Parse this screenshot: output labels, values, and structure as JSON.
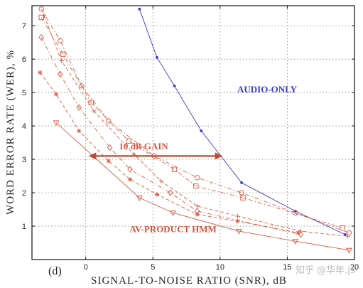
{
  "chart_data": {
    "type": "line",
    "panel_label": "(d)",
    "xlabel": "SIGNAL-TO-NOISE  RATIO  (SNR),  dB",
    "ylabel": "WORD  ERROR  RATE  (WER),  %",
    "xlim": [
      -4,
      20
    ],
    "ylim": [
      0,
      7.6
    ],
    "xticks": [
      0,
      5,
      10,
      15,
      20
    ],
    "yticks": [
      1,
      2,
      3,
      4,
      5,
      6,
      7
    ],
    "grid": true,
    "colors": {
      "audio": "#3a3acc",
      "av": "#d85840",
      "frame": "#111111",
      "grid": "#6a6a6a"
    },
    "series": [
      {
        "name": "AUDIO-ONLY",
        "color": "#3a3acc",
        "dash": "solid",
        "marker": "dot",
        "x": [
          4,
          5.3,
          6.6,
          8.6,
          11.6,
          15.6,
          19.3
        ],
        "y": [
          7.5,
          6.05,
          5.2,
          3.85,
          2.3,
          1.45,
          0.75
        ]
      },
      {
        "name": "AV-PRODUCT HMM",
        "color": "#d85840",
        "dash": "solid",
        "marker": "triangle",
        "x": [
          -2.2,
          4,
          6.5,
          11.4,
          15.6,
          19.6
        ],
        "y": [
          4.1,
          1.85,
          1.4,
          0.85,
          0.55,
          0.28
        ]
      },
      {
        "color": "#d85840",
        "dash": "dashdot",
        "marker": "circle",
        "x": [
          -3.3,
          -1.9,
          -0.3,
          1.7,
          5.1,
          8.3,
          11.6,
          15.6,
          19.6
        ],
        "y": [
          7.5,
          6.55,
          5.2,
          4.15,
          3.1,
          2.45,
          2.0,
          1.4,
          0.8
        ]
      },
      {
        "color": "#d85840",
        "dash": "dashdot",
        "marker": "square",
        "x": [
          -3.3,
          -1.7,
          0.4,
          3.2,
          6.6,
          8.2,
          11.7,
          19.1
        ],
        "y": [
          7.25,
          6.15,
          4.7,
          3.55,
          2.7,
          2.2,
          1.85,
          0.95
        ]
      },
      {
        "color": "#d85840",
        "dash": "dashdot",
        "marker": "diamond",
        "x": [
          -3.3,
          -1.9,
          -0.5,
          1.8,
          3.3,
          6.3,
          8.3,
          16.0
        ],
        "y": [
          6.65,
          5.55,
          4.55,
          3.35,
          2.7,
          2.0,
          1.45,
          0.75
        ]
      },
      {
        "color": "#d85840",
        "dash": "dashed",
        "marker": "plus",
        "x": [
          -3.1,
          -1.8,
          0.6,
          3.6,
          5.6,
          8.3,
          11.3,
          16.0,
          19.5
        ],
        "y": [
          7.3,
          5.95,
          4.45,
          3.15,
          2.35,
          1.6,
          1.3,
          0.85,
          0.7
        ]
      },
      {
        "color": "#d85840",
        "dash": "dashed",
        "marker": "asterisk",
        "x": [
          -3.4,
          -2.2,
          -0.5,
          1.7,
          3.3,
          5.3,
          8.3,
          11.3,
          15.8
        ],
        "y": [
          5.6,
          4.95,
          3.85,
          2.95,
          2.4,
          1.95,
          1.35,
          1.15,
          0.8
        ]
      }
    ],
    "annotations": [
      {
        "text": "AUDIO-ONLY",
        "x": 13.5,
        "y": 5.0,
        "color": "#3a3acc"
      },
      {
        "text": "10  dB  GAIN",
        "x": 4.3,
        "y": 3.3,
        "color": "#d85840"
      },
      {
        "text": "AV-PRODUCT HMM",
        "x": 6.5,
        "y": 0.82,
        "color": "#d85840"
      }
    ],
    "gain_arrow": {
      "x_from": 0.2,
      "x_to": 10.2,
      "y": 3.1,
      "color": "#c04a30"
    }
  },
  "watermark": {
    "text": "知乎 @华年.js"
  }
}
